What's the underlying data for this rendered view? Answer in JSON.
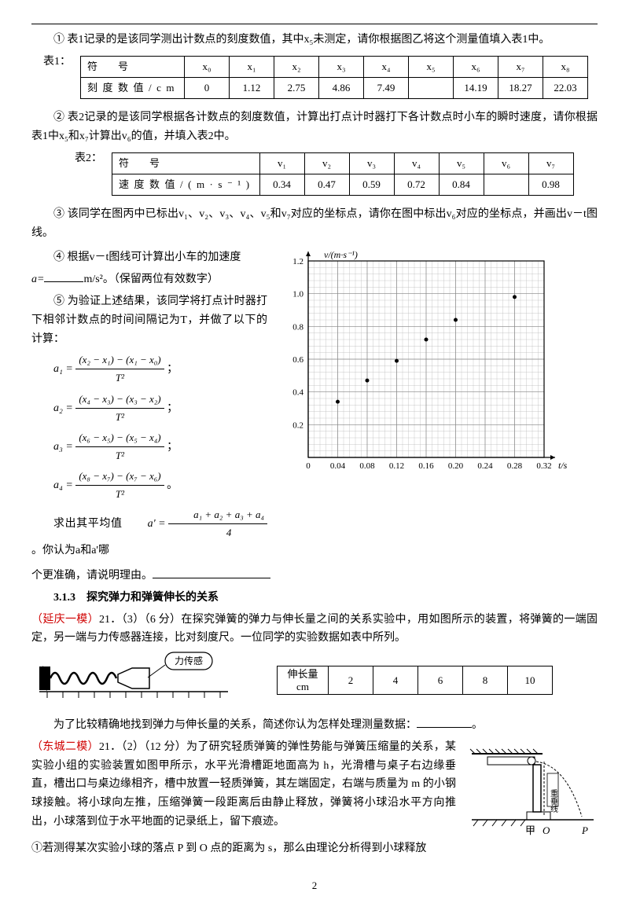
{
  "top": {
    "q1_text": "① 表1记录的是该同学测出计数点的刻度数值，其中x₅未测定，请你根据图乙将这个测量值填入表1中。",
    "t1_label": "表1：",
    "t1": {
      "h": "符　号",
      "cols": [
        "x₀",
        "x₁",
        "x₂",
        "x₃",
        "x₄",
        "x₅",
        "x₆",
        "x₇",
        "x₈"
      ],
      "row_h": "刻度数值/cm",
      "vals": [
        "0",
        "1.12",
        "2.75",
        "4.86",
        "7.49",
        "",
        "14.19",
        "18.27",
        "22.03"
      ]
    },
    "q2_text": "② 表2记录的是该同学根据各计数点的刻度数值，计算出打点计时器打下各计数点时小车的瞬时速度，请你根据表1中x₅和x₇计算出v₆的值，并填入表2中。",
    "t2_label": "表2：",
    "t2": {
      "h": "符　号",
      "cols": [
        "v₁",
        "v₂",
        "v₃",
        "v₄",
        "v₅",
        "v₆",
        "v₇"
      ],
      "row_h": "速度数值/(m·s⁻¹)",
      "vals": [
        "0.34",
        "0.47",
        "0.59",
        "0.72",
        "0.84",
        "",
        "0.98"
      ]
    },
    "q3_text": "③ 该同学在图丙中已标出v₁、v₂、v₃、v₄、v₅和v₇对应的坐标点，请你在图中标出v₆对应的坐标点，并画出v－t图线。",
    "q4_pre": "④ 根据v－t图线可计算出小车的加速度",
    "q4_post": "m/s²。（保留两位有效数字）",
    "q4_var": "a=",
    "q5_text": "⑤ 为验证上述结果，该同学将打点计时器打下相邻计数点的时间间隔记为T，并做了以下的计算：",
    "formulas": [
      {
        "lhs": "a₁",
        "num": "(x₂ − x₁) − (x₁ − x₀)",
        "den": "T²"
      },
      {
        "lhs": "a₂",
        "num": "(x₄ − x₃) − (x₃ − x₂)",
        "den": "T²"
      },
      {
        "lhs": "a₃",
        "num": "(x₆ − x₅) − (x₅ − x₄)",
        "den": "T²"
      },
      {
        "lhs": "a₄",
        "num": "(x₈ − x₇) − (x₇ − x₆)",
        "den": "T²"
      }
    ],
    "avg_pre": "求出其平均值",
    "avg_lhs": "a' =",
    "avg_num": "a₁ + a₂ + a₃ + a₄",
    "avg_den": "4",
    "avg_post": "。你认为a和a'哪",
    "q5_tail": "个更准确，请说明理由。"
  },
  "chart": {
    "ylabel": "v/(m·s⁻¹)",
    "xlabel": "t/s",
    "ylim": [
      0,
      1.2
    ],
    "ystep": 0.2,
    "xlim": [
      0,
      0.32
    ],
    "xstep": 0.04,
    "yticks": [
      "0",
      "0.2",
      "0.4",
      "0.6",
      "0.8",
      "1.0",
      "1.2"
    ],
    "xticks": [
      "0",
      "0.04",
      "0.08",
      "0.12",
      "0.16",
      "0.20",
      "0.24",
      "0.28",
      "0.32"
    ],
    "points": [
      [
        0.04,
        0.34
      ],
      [
        0.08,
        0.47
      ],
      [
        0.12,
        0.59
      ],
      [
        0.16,
        0.72
      ],
      [
        0.2,
        0.84
      ],
      [
        0.28,
        0.98
      ]
    ],
    "bg": "#ffffff",
    "grid": "#bbbbbb",
    "axis": "#000000",
    "marker": "#000000"
  },
  "section": {
    "num": "3.1.3",
    "title": "探究弹力和弹簧伸长的关系"
  },
  "yanqing": {
    "tag": "（延庆一模）",
    "body": "21．（3）（6 分）在探究弹簧的弹力与伸长量之间的关系实验中，用如图所示的装置，将弹簧的一端固定，另一端与力传感器连接，比对刻度尺。一位同学的实验数据如表中所列。",
    "sensor_label": "力传感",
    "table": {
      "h1": "伸长量",
      "unit": "cm",
      "vals": [
        "2",
        "4",
        "6",
        "8",
        "10"
      ]
    },
    "q": "为了比较精确地找到弹力与伸长量的关系，简述你认为怎样处理测量数据：",
    "end": "。"
  },
  "dongcheng": {
    "tag": "（东城二模）",
    "body": "21．（2）（12 分）为了研究轻质弹簧的弹性势能与弹簧压缩量的关系，某实验小组的实验装置如图甲所示，水平光滑槽距地面高为 h，光滑槽与桌子右边缘垂直，槽出口与桌边缘相齐，槽中放置一轻质弹簧，其左端固定，右端与质量为 m 的小钢球接触。将小球向左推，压缩弹簧一段距离后由静止释放，弹簧将小球沿水平方向推出，小球落到位于水平地面的记录纸上，留下痕迹。",
    "q1": "①若测得某次实验小球的落点 P 到 O 点的距离为 s，那么由理论分析得到小球释放",
    "fig": {
      "labels": {
        "v": "重垂线",
        "jia": "甲",
        "O": "O",
        "P": "P"
      }
    }
  },
  "page": "2"
}
